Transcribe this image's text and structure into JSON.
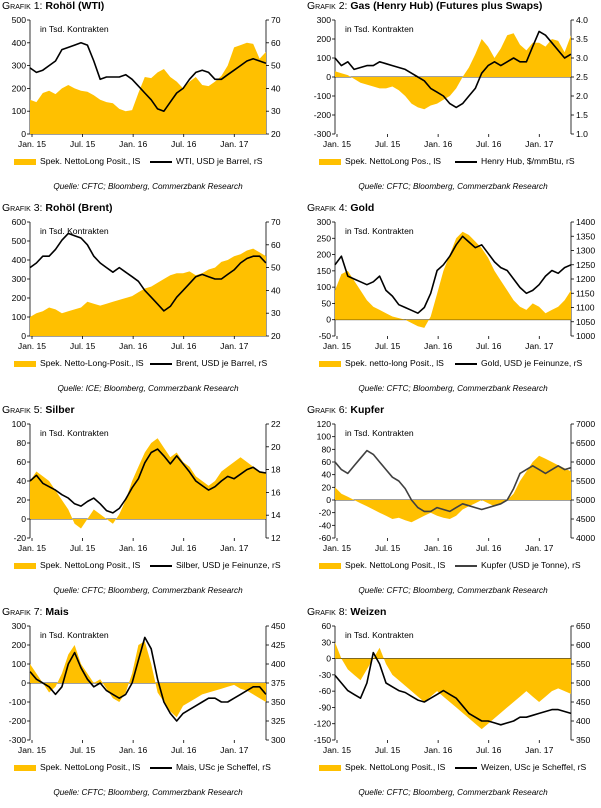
{
  "colors": {
    "area": "#FFC000",
    "line": "#000000"
  },
  "charts": [
    {
      "id": "c1",
      "title_prefix": "Grafik 1:",
      "title": "Rohöl (WTI)",
      "inner_label": "in Tsd. Kontrakten",
      "legend_area": "Spek. NettoLong Posit., lS",
      "legend_line": "WTI, USD je Barrel, rS",
      "source": "Quelle: CFTC; Bloomberg, Commerzbank Research",
      "x_ticks": [
        "Jan. 15",
        "Jul. 15",
        "Jan. 16",
        "Jul. 16",
        "Jan. 17"
      ],
      "left_ticks": [
        "500",
        "400",
        "300",
        "200",
        "100",
        "0"
      ],
      "right_ticks": [
        "70",
        "60",
        "50",
        "40",
        "30",
        "20"
      ]
    },
    {
      "id": "c2",
      "title_prefix": "Grafik 2:",
      "title": "Gas (Henry Hub) (Futures plus Swaps)",
      "inner_label": "in Tsd. Kontrakten",
      "legend_area": "Spek. NettoLong Pos., lS",
      "legend_line": "Henry Hub, $/mmBtu, rS",
      "source": "Quelle: CFTC; Bloomberg, Commerzbank Research",
      "x_ticks": [
        "Jan. 15",
        "Jul. 15",
        "Jan. 16",
        "Jul. 16",
        "Jan. 17"
      ],
      "left_ticks": [
        "300",
        "200",
        "100",
        "0",
        "-100",
        "-200",
        "-300"
      ],
      "right_ticks": [
        "4.0",
        "3.5",
        "3.0",
        "2.5",
        "2.0",
        "1.5",
        "1.0"
      ]
    },
    {
      "id": "c3",
      "title_prefix": "Grafik 3:",
      "title": "Rohöl (Brent)",
      "inner_label": "in Tsd. Kontrakten",
      "legend_area": "Spek. Netto-Long-Posit., lS",
      "legend_line": "Brent, USD je Barrel, rS",
      "source": "Quelle: ICE; Bloomberg, Commerzbank Research",
      "x_ticks": [
        "Jan. 15",
        "Jul. 15",
        "Jan. 16",
        "Jul. 16",
        "Jan. 17"
      ],
      "left_ticks": [
        "600",
        "500",
        "400",
        "300",
        "200",
        "100",
        "0"
      ],
      "right_ticks": [
        "70",
        "60",
        "50",
        "40",
        "30",
        "20"
      ]
    },
    {
      "id": "c4",
      "title_prefix": "Grafik 4:",
      "title": "Gold",
      "inner_label": "in Tsd. Kontrakten",
      "legend_area": "Spek. netto-long Posit., lS",
      "legend_line": "Gold, USD je Feinunze, rS",
      "source": "Quelle: CFTC; Bloomberg, Commerzbank Research",
      "x_ticks": [
        "Jan. 15",
        "Jul. 15",
        "Jan. 16",
        "Jul. 16",
        "Jan. 17"
      ],
      "left_ticks": [
        "300",
        "250",
        "200",
        "150",
        "100",
        "50",
        "0",
        "-50"
      ],
      "right_ticks": [
        "1400",
        "1350",
        "1300",
        "1250",
        "1200",
        "1150",
        "1100",
        "1050",
        "1000"
      ]
    },
    {
      "id": "c5",
      "title_prefix": "Grafik 5:",
      "title": "Silber",
      "inner_label": "in Tsd. Kontrakten",
      "legend_area": "Spek. NettoLong Posit., lS",
      "legend_line": "Silber, USD je Feinunze, rS",
      "source": "Quelle: CFTC; Bloomberg, Commerzbank Research",
      "x_ticks": [
        "Jan. 15",
        "Jul. 15",
        "Jan. 16",
        "Jul. 16",
        "Jan. 17"
      ],
      "left_ticks": [
        "100",
        "80",
        "60",
        "40",
        "20",
        "0",
        "-20"
      ],
      "right_ticks": [
        "22",
        "20",
        "18",
        "16",
        "14",
        "12"
      ]
    },
    {
      "id": "c6",
      "title_prefix": "Grafik 6:",
      "title": "Kupfer",
      "inner_label": "in Tsd. Kontrakten",
      "legend_area": "Spek. NettoLong Posit., lS",
      "legend_line": "Kupfer (USD je Tonne), rS",
      "source": "Quelle: CFTC; Bloomberg, Commerzbank Research",
      "x_ticks": [
        "Jan. 15",
        "Jul. 15",
        "Jan. 16",
        "Jul. 16",
        "Jan. 17"
      ],
      "left_ticks": [
        "120",
        "100",
        "80",
        "60",
        "40",
        "20",
        "0",
        "-20",
        "-40",
        "-60"
      ],
      "right_ticks": [
        "7000",
        "6500",
        "6000",
        "5500",
        "5000",
        "4500",
        "4000"
      ]
    },
    {
      "id": "c7",
      "title_prefix": "Grafik 7:",
      "title": "Mais",
      "inner_label": "in Tsd. Kontrakten",
      "legend_area": "Spek. NettoLong Posit., lS",
      "legend_line": "Mais, USc je Scheffel, rS",
      "source": "Quelle: CFTC; Bloomberg, Commerzbank Research",
      "x_ticks": [
        "Jan. 15",
        "Jul. 15",
        "Jan. 16",
        "Jul. 16",
        "Jan. 17"
      ],
      "left_ticks": [
        "300",
        "200",
        "100",
        "0",
        "-100",
        "-200",
        "-300"
      ],
      "right_ticks": [
        "450",
        "425",
        "400",
        "375",
        "350",
        "325",
        "300"
      ]
    },
    {
      "id": "c8",
      "title_prefix": "Grafik 8:",
      "title": "Weizen",
      "inner_label": "in Tsd. Kontrakten",
      "legend_area": "Spek. NettoLong Posit., lS",
      "legend_line": "Weizen, USc je Scheffel, rS",
      "source": "Quelle: CFTC; Bloomberg, Commerzbank Research",
      "x_ticks": [
        "Jan. 15",
        "Jul. 15",
        "Jan. 16",
        "Jul. 16",
        "Jan. 17"
      ],
      "left_ticks": [
        "60",
        "30",
        "0",
        "-30",
        "-60",
        "-90",
        "-120",
        "-150"
      ],
      "right_ticks": [
        "650",
        "600",
        "550",
        "500",
        "450",
        "400",
        "350"
      ]
    }
  ],
  "chart_data": [
    {
      "type": "area",
      "x_range": [
        "2015-01",
        "2017-05"
      ],
      "series": [
        {
          "axis": "left",
          "ylim": [
            0,
            500
          ],
          "values": [
            150,
            140,
            180,
            190,
            175,
            200,
            215,
            200,
            190,
            185,
            170,
            150,
            140,
            135,
            110,
            100,
            105,
            180,
            250,
            245,
            270,
            285,
            250,
            230,
            200,
            230,
            250,
            215,
            210,
            230,
            255,
            300,
            380,
            390,
            400,
            395,
            330,
            360
          ]
        },
        {
          "axis": "right",
          "ylim": [
            20,
            70
          ],
          "values": [
            49,
            47,
            48,
            50,
            52,
            57,
            58,
            59,
            60,
            59,
            52,
            44,
            45,
            45,
            45,
            46,
            44,
            41,
            38,
            35,
            31,
            30,
            34,
            38,
            40,
            44,
            47,
            48,
            47,
            44,
            44,
            46,
            48,
            50,
            52,
            53,
            52,
            51
          ]
        }
      ]
    },
    {
      "type": "area",
      "x_range": [
        "2015-01",
        "2017-05"
      ],
      "series": [
        {
          "axis": "left",
          "ylim": [
            -300,
            300
          ],
          "values": [
            30,
            20,
            10,
            -10,
            -30,
            -40,
            -50,
            -60,
            -60,
            -50,
            -70,
            -100,
            -140,
            -160,
            -170,
            -150,
            -140,
            -120,
            -100,
            -60,
            0,
            50,
            120,
            200,
            160,
            100,
            150,
            220,
            230,
            170,
            140,
            180,
            180,
            160,
            200,
            190,
            130,
            220
          ]
        },
        {
          "axis": "right",
          "ylim": [
            1.0,
            4.0
          ],
          "values": [
            3.0,
            2.8,
            2.9,
            2.7,
            2.75,
            2.8,
            2.8,
            2.9,
            2.85,
            2.8,
            2.75,
            2.7,
            2.6,
            2.5,
            2.4,
            2.2,
            2.1,
            2.0,
            1.8,
            1.7,
            1.8,
            2.0,
            2.2,
            2.6,
            2.8,
            2.9,
            2.8,
            2.9,
            3.0,
            2.9,
            2.9,
            3.3,
            3.7,
            3.6,
            3.4,
            3.2,
            3.0,
            3.1
          ]
        }
      ]
    },
    {
      "type": "area",
      "x_range": [
        "2015-01",
        "2017-05"
      ],
      "series": [
        {
          "axis": "left",
          "ylim": [
            0,
            600
          ],
          "values": [
            100,
            120,
            130,
            150,
            140,
            120,
            130,
            140,
            150,
            180,
            170,
            160,
            170,
            180,
            190,
            200,
            210,
            230,
            250,
            260,
            280,
            300,
            320,
            330,
            330,
            340,
            320,
            330,
            350,
            360,
            390,
            400,
            420,
            430,
            450,
            460,
            440,
            420
          ]
        },
        {
          "axis": "right",
          "ylim": [
            20,
            70
          ],
          "values": [
            50,
            52,
            55,
            55,
            58,
            62,
            65,
            64,
            63,
            60,
            55,
            52,
            50,
            48,
            50,
            48,
            46,
            44,
            40,
            37,
            34,
            31,
            33,
            37,
            40,
            43,
            46,
            47,
            46,
            45,
            45,
            47,
            49,
            52,
            54,
            55,
            55,
            52
          ]
        }
      ]
    },
    {
      "type": "area",
      "x_range": [
        "2015-01",
        "2017-05"
      ],
      "series": [
        {
          "axis": "left",
          "ylim": [
            -50,
            300
          ],
          "values": [
            90,
            140,
            150,
            120,
            90,
            60,
            40,
            30,
            20,
            10,
            5,
            0,
            -10,
            -20,
            -25,
            10,
            80,
            150,
            200,
            250,
            270,
            260,
            240,
            220,
            190,
            150,
            120,
            90,
            60,
            40,
            30,
            50,
            40,
            20,
            30,
            40,
            60,
            90
          ]
        },
        {
          "axis": "right",
          "ylim": [
            1000,
            1400
          ],
          "values": [
            1250,
            1280,
            1210,
            1200,
            1190,
            1180,
            1190,
            1210,
            1160,
            1140,
            1110,
            1100,
            1090,
            1080,
            1100,
            1150,
            1230,
            1250,
            1280,
            1320,
            1350,
            1330,
            1310,
            1320,
            1290,
            1260,
            1240,
            1230,
            1200,
            1170,
            1150,
            1160,
            1180,
            1210,
            1230,
            1220,
            1240,
            1250
          ]
        }
      ]
    },
    {
      "type": "area",
      "x_range": [
        "2015-01",
        "2017-05"
      ],
      "series": [
        {
          "axis": "left",
          "ylim": [
            -20,
            100
          ],
          "values": [
            40,
            50,
            45,
            40,
            30,
            20,
            10,
            -5,
            -10,
            0,
            10,
            5,
            0,
            -5,
            5,
            20,
            40,
            55,
            70,
            80,
            85,
            75,
            65,
            70,
            60,
            55,
            45,
            40,
            35,
            40,
            50,
            55,
            60,
            65,
            60,
            55,
            50,
            48
          ]
        },
        {
          "axis": "right",
          "ylim": [
            12,
            22
          ],
          "values": [
            17,
            17.5,
            16.8,
            16.5,
            16.2,
            15.8,
            15.5,
            15.0,
            14.8,
            15.2,
            15.5,
            15.0,
            14.4,
            14.2,
            14.6,
            15.4,
            16.4,
            17.2,
            18.6,
            19.5,
            19.8,
            19.2,
            18.5,
            19.2,
            18.5,
            17.8,
            17.0,
            16.6,
            16.2,
            16.5,
            17.0,
            17.4,
            17.2,
            17.6,
            18.0,
            18.2,
            17.8,
            17.7
          ]
        }
      ]
    },
    {
      "type": "area",
      "x_range": [
        "2015-01",
        "2017-05"
      ],
      "series": [
        {
          "axis": "left",
          "ylim": [
            -60,
            120
          ],
          "values": [
            20,
            10,
            5,
            0,
            -5,
            -10,
            -15,
            -20,
            -25,
            -30,
            -28,
            -32,
            -35,
            -30,
            -25,
            -20,
            -25,
            -28,
            -30,
            -25,
            -15,
            -10,
            -5,
            0,
            -5,
            -10,
            -5,
            0,
            10,
            30,
            45,
            60,
            70,
            65,
            60,
            55,
            50,
            45
          ]
        },
        {
          "axis": "right",
          "ylim": [
            4000,
            7000
          ],
          "values": [
            6000,
            5800,
            5700,
            5900,
            6100,
            6300,
            6200,
            6000,
            5800,
            5600,
            5500,
            5300,
            5000,
            4800,
            4700,
            4700,
            4800,
            4750,
            4700,
            4800,
            4900,
            4850,
            4800,
            4750,
            4800,
            4850,
            4900,
            5000,
            5300,
            5700,
            5800,
            5900,
            5800,
            5700,
            5800,
            5900,
            5800,
            5850
          ]
        }
      ]
    },
    {
      "type": "area",
      "x_range": [
        "2015-01",
        "2017-05"
      ],
      "series": [
        {
          "axis": "left",
          "ylim": [
            -300,
            300
          ],
          "values": [
            100,
            50,
            0,
            -50,
            -20,
            50,
            150,
            200,
            100,
            50,
            0,
            20,
            -30,
            -80,
            -100,
            -50,
            50,
            200,
            220,
            100,
            -50,
            -100,
            -150,
            -180,
            -120,
            -100,
            -80,
            -60,
            -50,
            -40,
            -30,
            -20,
            -10,
            -30,
            -40,
            -60,
            -80,
            -100
          ]
        },
        {
          "axis": "right",
          "ylim": [
            300,
            450
          ],
          "values": [
            390,
            380,
            375,
            370,
            360,
            370,
            400,
            415,
            395,
            380,
            370,
            375,
            365,
            360,
            355,
            360,
            375,
            405,
            435,
            420,
            380,
            350,
            335,
            325,
            335,
            340,
            345,
            350,
            355,
            355,
            350,
            350,
            355,
            360,
            365,
            370,
            370,
            360
          ]
        }
      ]
    },
    {
      "type": "area",
      "x_range": [
        "2015-01",
        "2017-05"
      ],
      "series": [
        {
          "axis": "left",
          "ylim": [
            -150,
            60
          ],
          "values": [
            30,
            0,
            -20,
            -30,
            -40,
            -20,
            0,
            20,
            -10,
            -30,
            -40,
            -50,
            -60,
            -70,
            -80,
            -70,
            -60,
            -70,
            -80,
            -90,
            -100,
            -110,
            -120,
            -130,
            -120,
            -110,
            -100,
            -90,
            -80,
            -70,
            -60,
            -70,
            -80,
            -70,
            -60,
            -55,
            -60,
            -65
          ]
        },
        {
          "axis": "right",
          "ylim": [
            350,
            650
          ],
          "values": [
            520,
            500,
            480,
            470,
            460,
            500,
            580,
            550,
            500,
            490,
            480,
            475,
            465,
            455,
            450,
            460,
            470,
            480,
            470,
            460,
            440,
            420,
            410,
            400,
            400,
            395,
            390,
            395,
            400,
            410,
            410,
            415,
            420,
            425,
            430,
            430,
            425,
            420
          ]
        }
      ]
    }
  ]
}
